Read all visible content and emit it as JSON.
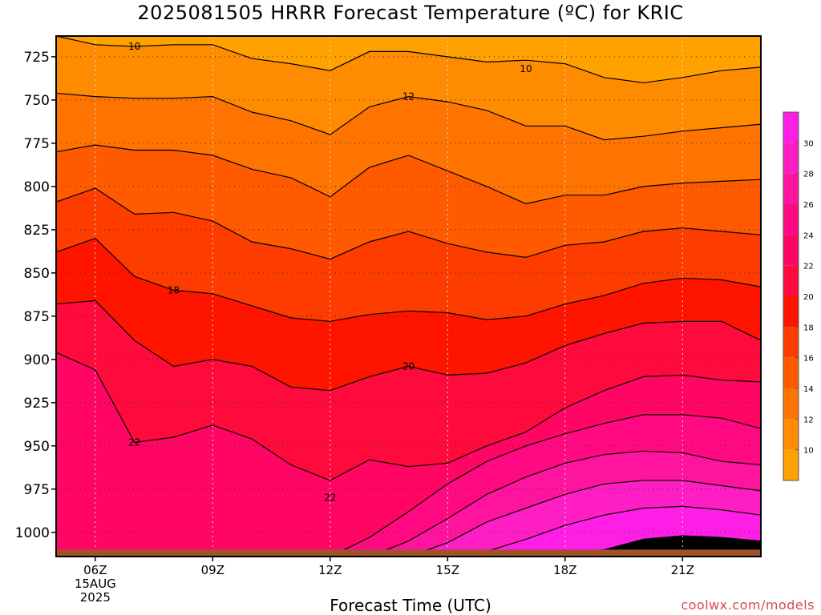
{
  "chart_data": {
    "type": "heatmap",
    "title": "2025081505 HRRR Forecast Temperature (ºC) for KRIC",
    "xlabel": "Forecast Time (UTC)",
    "ylabel": "",
    "x_ticks": [
      "06Z",
      "09Z",
      "12Z",
      "15Z",
      "18Z",
      "21Z"
    ],
    "x_tick_hours": [
      6,
      9,
      12,
      15,
      18,
      21
    ],
    "x_date_label": [
      "15AUG",
      "2025"
    ],
    "xlim": [
      5,
      23
    ],
    "y_ticks": [
      725,
      750,
      775,
      800,
      825,
      850,
      875,
      900,
      925,
      950,
      975,
      1000
    ],
    "ylim": [
      1014,
      713
    ],
    "y_units": "hPa",
    "grid": true,
    "colorbar": {
      "levels": [
        10,
        12,
        14,
        16,
        18,
        20,
        22,
        24,
        26,
        28,
        30
      ],
      "colors": [
        "#ffa200",
        "#ff8c00",
        "#ff7300",
        "#ff5a00",
        "#ff3c00",
        "#ff1400",
        "#ff0a3c",
        "#ff0564",
        "#ff0a82",
        "#ff14a0",
        "#ff1ec3",
        "#ff1ee6"
      ]
    },
    "ground_color": "#a0522d",
    "hours": [
      5,
      6,
      7,
      8,
      9,
      10,
      11,
      12,
      13,
      14,
      15,
      16,
      17,
      18,
      19,
      20,
      21,
      22,
      23
    ],
    "isotherms": [
      {
        "value": 10,
        "label_at_hour": 7,
        "pressures": [
          713,
          718,
          719,
          718,
          718,
          726,
          729,
          733,
          722,
          722,
          725,
          728,
          727,
          729,
          737,
          740,
          737,
          733,
          731
        ]
      },
      {
        "value": 12,
        "label_at_hour": 14,
        "pressures": [
          746,
          748,
          749,
          749,
          748,
          757,
          762,
          770,
          754,
          748,
          751,
          756,
          765,
          765,
          773,
          771,
          768,
          766,
          764
        ]
      },
      {
        "value": 14,
        "label_at_hour": null,
        "pressures": [
          780,
          776,
          779,
          779,
          782,
          790,
          795,
          806,
          789,
          782,
          791,
          800,
          810,
          805,
          805,
          800,
          798,
          797,
          796
        ]
      },
      {
        "value": 16,
        "label_at_hour": null,
        "pressures": [
          809,
          801,
          816,
          815,
          820,
          832,
          836,
          842,
          832,
          826,
          833,
          838,
          841,
          834,
          832,
          826,
          824,
          826,
          828
        ]
      },
      {
        "value": 18,
        "label_at_hour": 8,
        "pressures": [
          838,
          830,
          852,
          860,
          862,
          869,
          876,
          878,
          874,
          872,
          873,
          877,
          875,
          868,
          863,
          856,
          853,
          854,
          858
        ]
      },
      {
        "value": 20,
        "label_at_hour": 14,
        "pressures": [
          868,
          866,
          889,
          904,
          900,
          904,
          916,
          918,
          910,
          904,
          909,
          908,
          902,
          892,
          885,
          879,
          878,
          878,
          889
        ]
      },
      {
        "value": 22,
        "label_at_hour": 7,
        "pressures": [
          896,
          906,
          948,
          945,
          938,
          946,
          961,
          970,
          958,
          962,
          960,
          950,
          942,
          928,
          918,
          910,
          909,
          912,
          913
        ]
      },
      {
        "value": 24,
        "label_at_hour": null,
        "pressures": [
          1015,
          1015,
          1015,
          1015,
          1015,
          1015,
          1015,
          1015,
          1003,
          988,
          972,
          959,
          950,
          943,
          937,
          932,
          932,
          934,
          940
        ]
      },
      {
        "value": 26,
        "label_at_hour": null,
        "pressures": [
          1015,
          1015,
          1015,
          1015,
          1015,
          1015,
          1015,
          1015,
          1015,
          1005,
          992,
          978,
          968,
          960,
          955,
          953,
          954,
          959,
          961
        ]
      },
      {
        "value": 28,
        "label_at_hour": null,
        "pressures": [
          1015,
          1015,
          1015,
          1015,
          1015,
          1015,
          1015,
          1015,
          1015,
          1015,
          1006,
          994,
          986,
          978,
          972,
          970,
          970,
          973,
          976
        ]
      },
      {
        "value": 30,
        "label_at_hour": null,
        "pressures": [
          1015,
          1015,
          1015,
          1015,
          1015,
          1015,
          1015,
          1015,
          1015,
          1015,
          1015,
          1011,
          1004,
          996,
          990,
          986,
          985,
          987,
          990
        ]
      },
      {
        "value": 32,
        "label_at_hour": null,
        "pressures": [
          1015,
          1015,
          1015,
          1015,
          1015,
          1015,
          1015,
          1015,
          1015,
          1015,
          1015,
          1015,
          1015,
          1013,
          1010,
          1004,
          1002,
          1003,
          1005
        ]
      }
    ],
    "extra_labels": [
      {
        "text": "10",
        "hour": 17,
        "pressure": 732
      },
      {
        "text": "22",
        "hour": 12,
        "pressure": 980
      }
    ]
  },
  "footer": {
    "credit": "coolwx.com/models"
  }
}
